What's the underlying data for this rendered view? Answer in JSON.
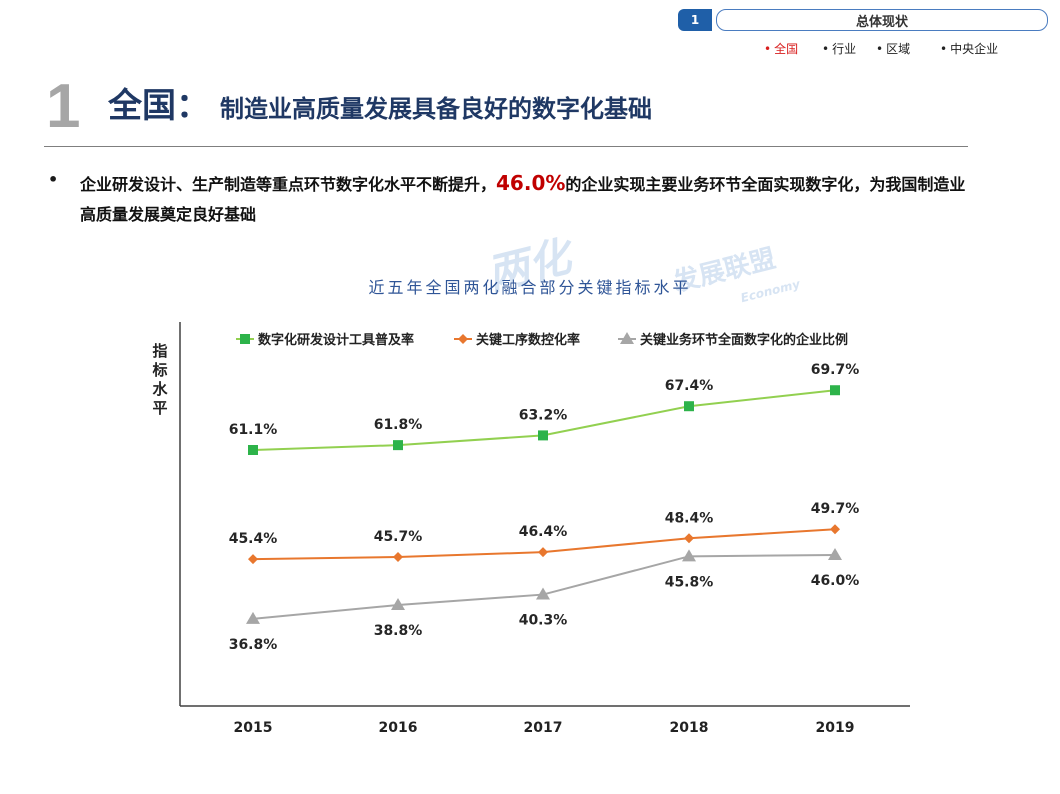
{
  "nav": {
    "number": "1",
    "title": "总体现状",
    "items": [
      {
        "label": "全国",
        "active": true
      },
      {
        "label": "行业",
        "active": false
      },
      {
        "label": "区域",
        "active": false
      },
      {
        "label": "中央企业",
        "active": false
      }
    ]
  },
  "heading": {
    "number": "1",
    "main": "全国：",
    "sub": "制造业高质量发展具备良好的数字化基础"
  },
  "bullet": {
    "text_before": "企业研发设计、生产制造等重点环节数字化水平不断提升，",
    "highlight": "46.0%",
    "text_after": "的企业实现主要业务环节全面实现数字化，为我国制造业高质量发展奠定良好基础"
  },
  "watermark": {
    "text1": "两化",
    "text2": "发展联盟",
    "text3": "Economy"
  },
  "colors": {
    "series1": "#2db34a",
    "series1_line": "#92d050",
    "series2": "#e8772e",
    "series3": "#a6a6a6",
    "title": "#2f5597",
    "heading": "#1f3864",
    "highlight": "#c00000"
  },
  "chart_data": {
    "type": "line",
    "title": "近五年全国两化融合部分关键指标水平",
    "ylabel": "指标水平",
    "xlabel": "",
    "categories": [
      "2015",
      "2016",
      "2017",
      "2018",
      "2019"
    ],
    "ylim": [
      30,
      75
    ],
    "grid": false,
    "legend": "top",
    "series": [
      {
        "name": "数字化研发设计工具普及率",
        "values": [
          61.1,
          61.8,
          63.2,
          67.4,
          69.7
        ],
        "labels": [
          "61.1%",
          "61.8%",
          "63.2%",
          "67.4%",
          "69.7%"
        ],
        "marker": "square",
        "label_position": "above"
      },
      {
        "name": "关键工序数控化率",
        "values": [
          45.4,
          45.7,
          46.4,
          48.4,
          49.7
        ],
        "labels": [
          "45.4%",
          "45.7%",
          "46.4%",
          "48.4%",
          "49.7%"
        ],
        "marker": "diamond",
        "label_position": "above"
      },
      {
        "name": "关键业务环节全面数字化的企业比例",
        "values": [
          36.8,
          38.8,
          40.3,
          45.8,
          46.0
        ],
        "labels": [
          "36.8%",
          "38.8%",
          "40.3%",
          "45.8%",
          "46.0%"
        ],
        "marker": "triangle",
        "label_position": "below"
      }
    ]
  }
}
